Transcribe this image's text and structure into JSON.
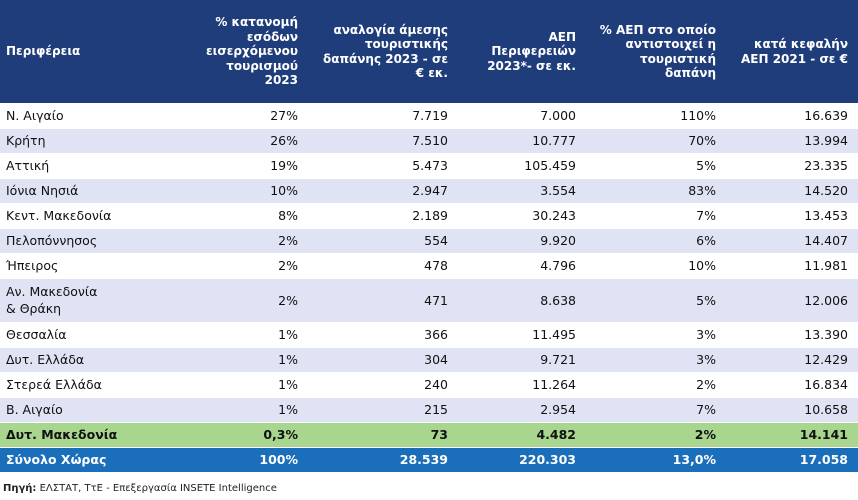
{
  "headers": [
    "Περιφέρεια",
    "% κατανομή εσόδων εισερχόμενου τουρισμού 2023",
    "αναλογία άμεσης τουριστικής δαπάνης 2023 - σε € εκ.",
    "ΑΕΠ Περιφερειών 2023*- σε εκ.",
    "% ΑΕΠ στο οποίο αντιστοιχεί η τουριστική δαπάνη",
    "κατά κεφαλήν ΑΕΠ 2021 - σε €"
  ],
  "rows": [
    {
      "region": [
        "Ν. Αιγαίο"
      ],
      "share": "27%",
      "spend": "7.719",
      "gdp": "7.000",
      "pct": "110%",
      "percap": "16.639"
    },
    {
      "region": [
        "Κρήτη"
      ],
      "share": "26%",
      "spend": "7.510",
      "gdp": "10.777",
      "pct": "70%",
      "percap": "13.994"
    },
    {
      "region": [
        "Αττική"
      ],
      "share": "19%",
      "spend": "5.473",
      "gdp": "105.459",
      "pct": "5%",
      "percap": "23.335"
    },
    {
      "region": [
        "Ιόνια Νησιά"
      ],
      "share": "10%",
      "spend": "2.947",
      "gdp": "3.554",
      "pct": "83%",
      "percap": "14.520"
    },
    {
      "region": [
        "Κεντ. Μακεδονία"
      ],
      "share": "8%",
      "spend": "2.189",
      "gdp": "30.243",
      "pct": "7%",
      "percap": "13.453"
    },
    {
      "region": [
        "Πελοπόννησος"
      ],
      "share": "2%",
      "spend": "554",
      "gdp": "9.920",
      "pct": "6%",
      "percap": "14.407"
    },
    {
      "region": [
        "Ήπειρος"
      ],
      "share": "2%",
      "spend": "478",
      "gdp": "4.796",
      "pct": "10%",
      "percap": "11.981"
    },
    {
      "region": [
        "Αν. Μακεδονία",
        "& Θράκη"
      ],
      "share": "2%",
      "spend": "471",
      "gdp": "8.638",
      "pct": "5%",
      "percap": "12.006"
    },
    {
      "region": [
        "Θεσσαλία"
      ],
      "share": "1%",
      "spend": "366",
      "gdp": "11.495",
      "pct": "3%",
      "percap": "13.390"
    },
    {
      "region": [
        "Δυτ. Ελλάδα"
      ],
      "share": "1%",
      "spend": "304",
      "gdp": "9.721",
      "pct": "3%",
      "percap": "12.429"
    },
    {
      "region": [
        "Στερεά Ελλάδα"
      ],
      "share": "1%",
      "spend": "240",
      "gdp": "11.264",
      "pct": "2%",
      "percap": "16.834"
    },
    {
      "region": [
        "Β. Αιγαίο"
      ],
      "share": "1%",
      "spend": "215",
      "gdp": "2.954",
      "pct": "7%",
      "percap": "10.658"
    },
    {
      "region": [
        "Δυτ. Μακεδονία"
      ],
      "share": "0,3%",
      "spend": "73",
      "gdp": "4.482",
      "pct": "2%",
      "percap": "14.141",
      "highlight": true
    },
    {
      "region": [
        "Σύνολο Χώρας"
      ],
      "share": "100%",
      "spend": "28.539",
      "gdp": "220.303",
      "pct": "13,0%",
      "percap": "17.058",
      "total": true
    }
  ],
  "source": {
    "label": "Πηγή:",
    "text": " ΕΛΣΤΑΤ, ΤτΕ - Επεξεργασία INSETE Intelligence"
  },
  "colors": {
    "header_bg": "#1f3d7a",
    "zebra": "#dfe3f3",
    "highlight_row": "#a8d68f",
    "total_row": "#1b6fba"
  }
}
